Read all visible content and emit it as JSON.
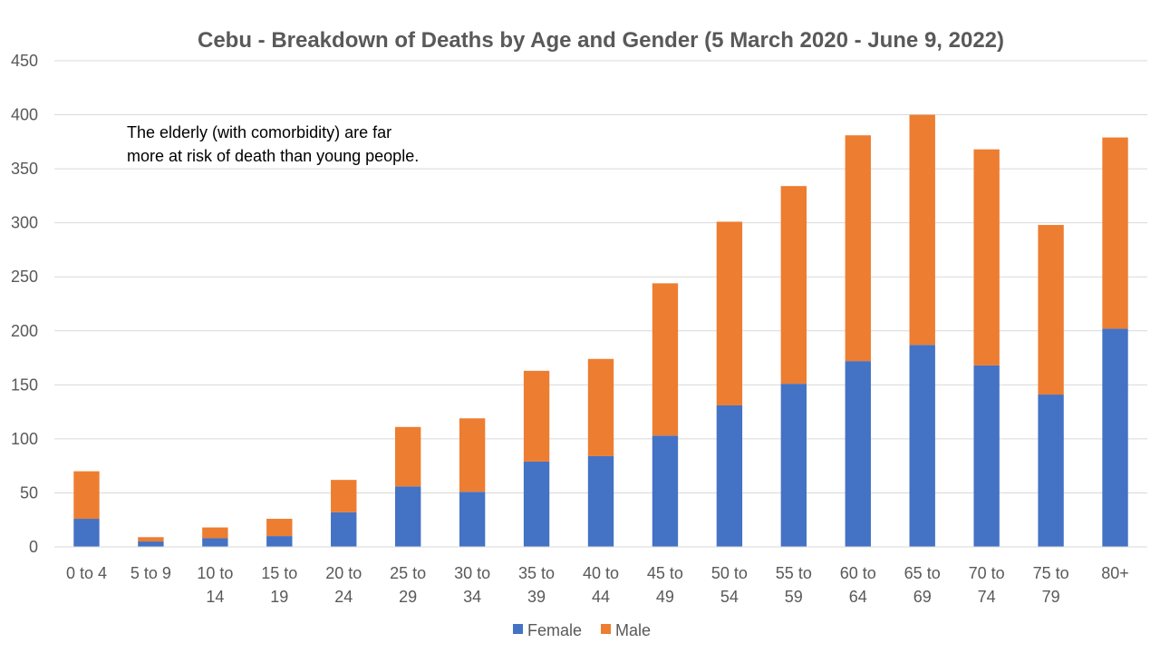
{
  "chart_data": {
    "type": "bar",
    "stacked": true,
    "title": "Cebu - Breakdown of Deaths by Age and Gender (5 March 2020 - June 9, 2022)",
    "xlabel": "",
    "ylabel": "",
    "ylim": [
      0,
      450
    ],
    "yticks": [
      0,
      50,
      100,
      150,
      200,
      250,
      300,
      350,
      400,
      450
    ],
    "grid": true,
    "legend_position": "bottom",
    "categories": [
      [
        "0 to 4"
      ],
      [
        "5 to 9"
      ],
      [
        "10 to",
        "14"
      ],
      [
        "15 to",
        "19"
      ],
      [
        "20 to",
        "24"
      ],
      [
        "25 to",
        "29"
      ],
      [
        "30 to",
        "34"
      ],
      [
        "35 to",
        "39"
      ],
      [
        "40 to",
        "44"
      ],
      [
        "45 to",
        "49"
      ],
      [
        "50 to",
        "54"
      ],
      [
        "55 to",
        "59"
      ],
      [
        "60 to",
        "64"
      ],
      [
        "65 to",
        "69"
      ],
      [
        "70 to",
        "74"
      ],
      [
        "75 to",
        "79"
      ],
      [
        "80+"
      ]
    ],
    "series": [
      {
        "name": "Female",
        "color": "#4472C4",
        "values": [
          26,
          5,
          8,
          10,
          32,
          56,
          51,
          79,
          84,
          103,
          131,
          151,
          172,
          187,
          168,
          141,
          202
        ]
      },
      {
        "name": "Male",
        "color": "#ED7D31",
        "values": [
          44,
          4,
          10,
          16,
          30,
          55,
          68,
          84,
          90,
          141,
          170,
          183,
          209,
          213,
          200,
          157,
          177
        ]
      }
    ],
    "annotation": [
      "The elderly (with comorbidity) are far",
      "more at risk of death than young people."
    ]
  }
}
